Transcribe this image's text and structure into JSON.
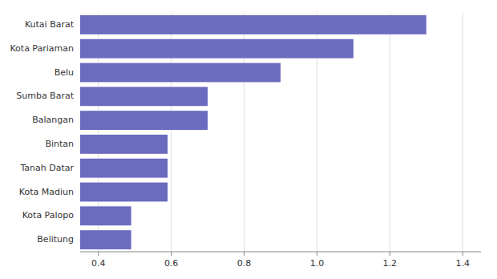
{
  "chart_data": {
    "type": "bar",
    "orientation": "horizontal",
    "categories": [
      "Belitung",
      "Kota Palopo",
      "Kota Madiun",
      "Tanah Datar",
      "Bintan",
      "Balangan",
      "Sumba Barat",
      "Belu",
      "Kota Pariaman",
      "Kutai Barat"
    ],
    "values": [
      0.49,
      0.49,
      0.59,
      0.59,
      0.59,
      0.7,
      0.7,
      0.9,
      1.1,
      1.3
    ],
    "color": "#6B6BBF",
    "xlim": [
      0.35,
      1.45
    ],
    "xticks": [
      0.4,
      0.6,
      0.8,
      {
        "value": 1.0,
        "label": "1.0"
      },
      1.2,
      1.4
    ],
    "grid": true
  }
}
